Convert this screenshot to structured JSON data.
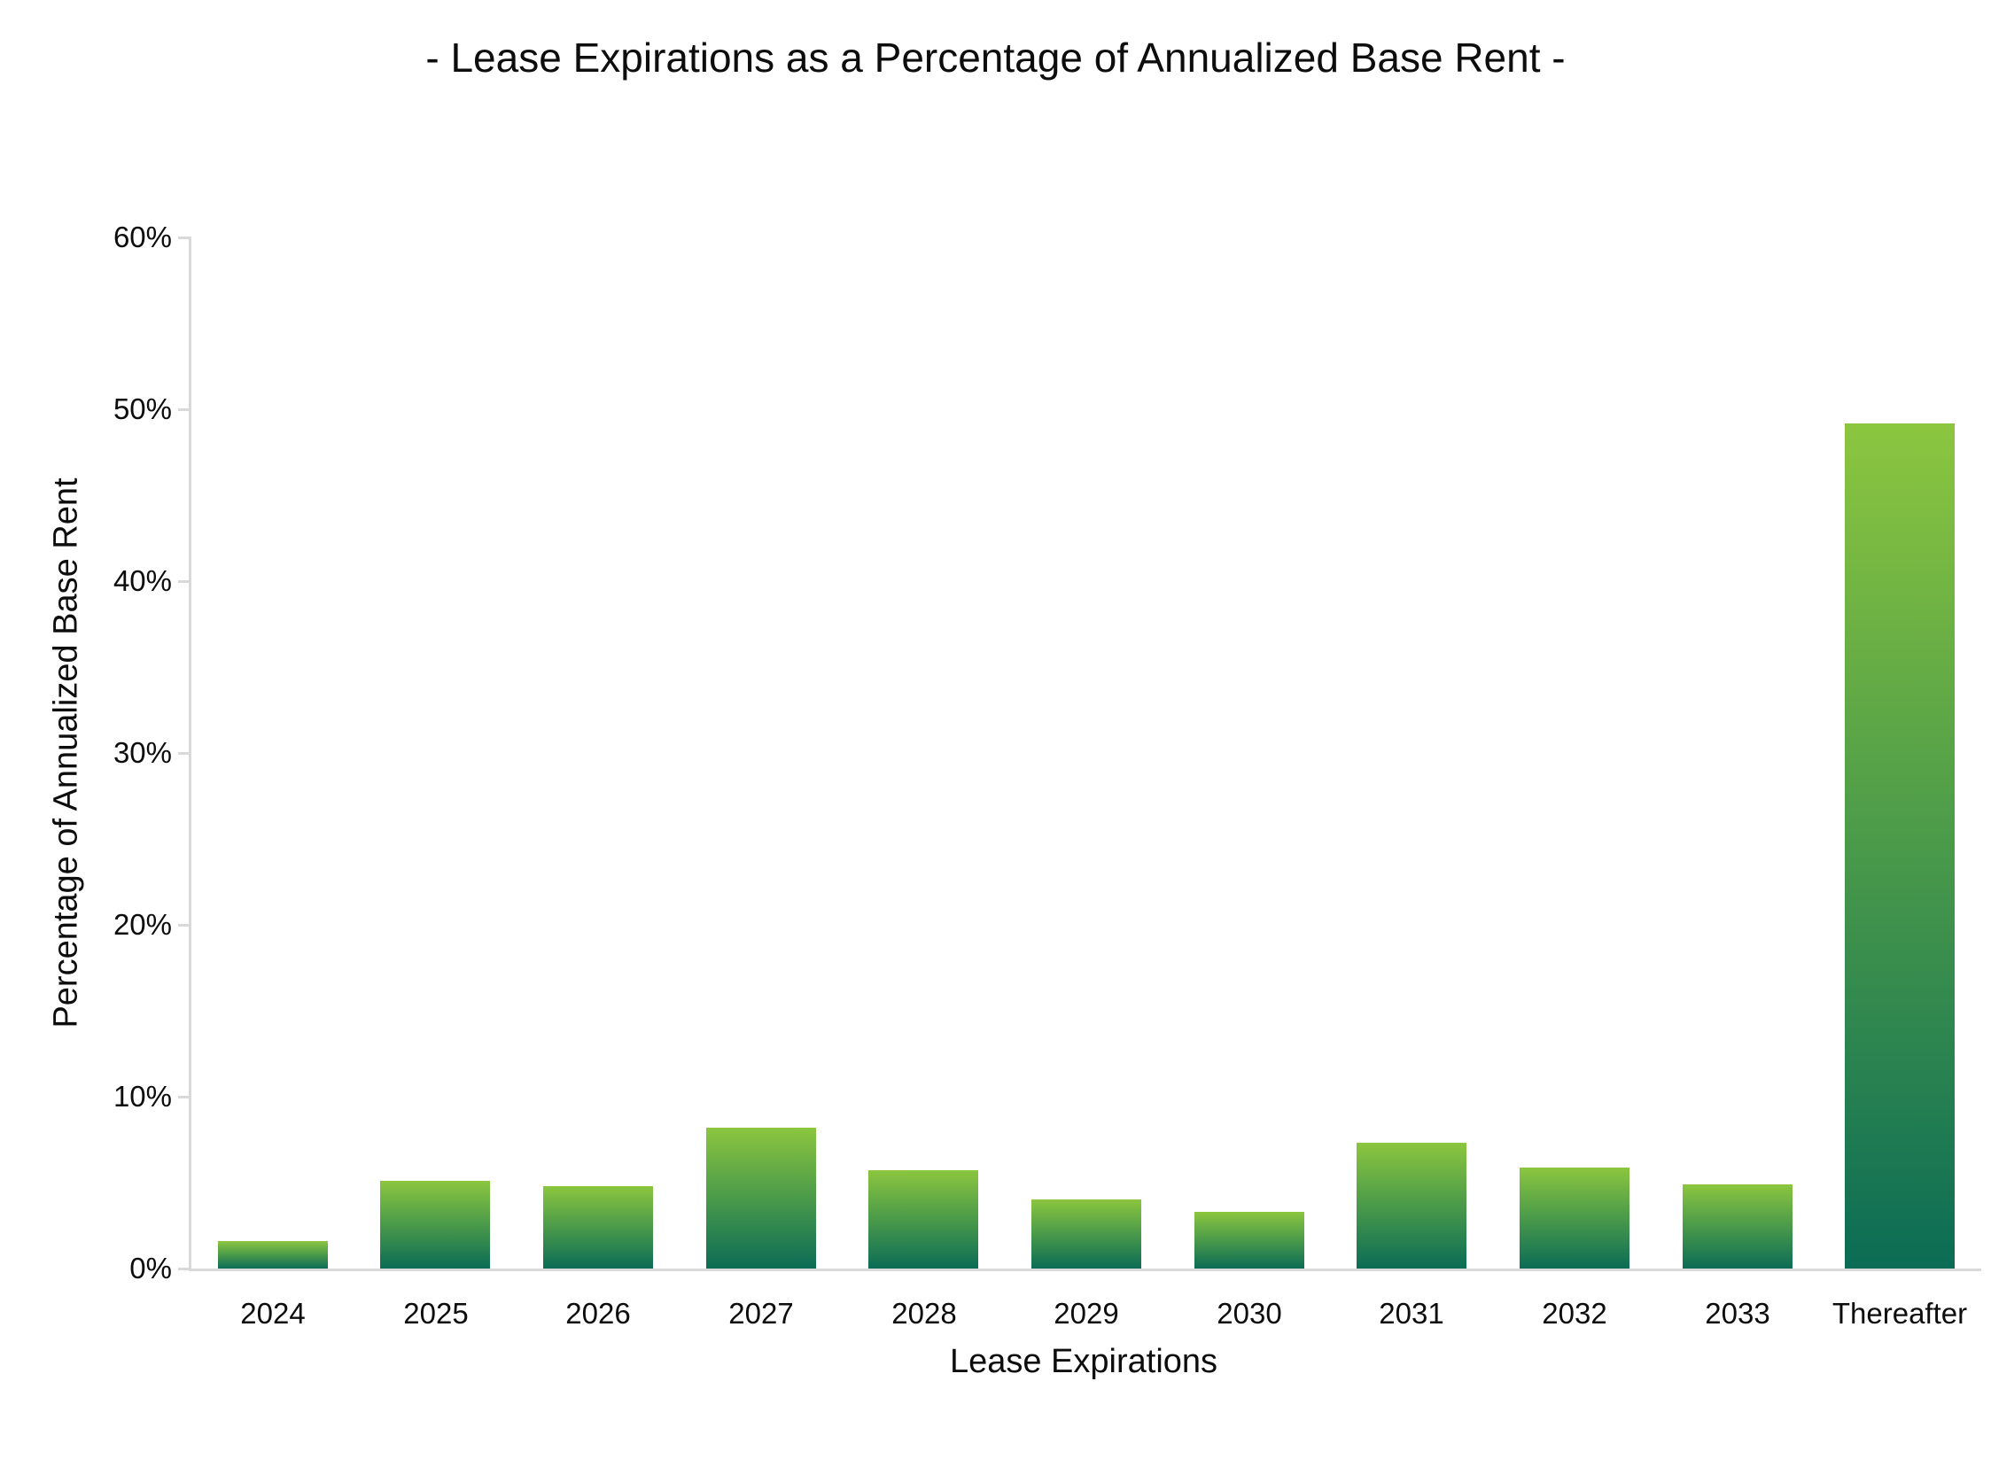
{
  "chart_data": {
    "type": "bar",
    "title": "- Lease Expirations as a Percentage of Annualized Base Rent -",
    "xlabel": "Lease Expirations",
    "ylabel": "Percentage of Annualized Base Rent",
    "categories": [
      "2024",
      "2025",
      "2026",
      "2027",
      "2028",
      "2029",
      "2030",
      "2031",
      "2032",
      "2033",
      "Thereafter"
    ],
    "values": [
      1.6,
      5.1,
      4.8,
      8.2,
      5.7,
      4.0,
      3.3,
      7.3,
      5.9,
      4.9,
      49.2
    ],
    "ylim": [
      0,
      60
    ],
    "ytick_step": 10,
    "yticks": [
      "60%",
      "50%",
      "40%",
      "30%",
      "20%",
      "10%",
      "0%"
    ],
    "grid": "off",
    "legend": "none",
    "colors": {
      "bar_gradient_top": "#8CC63F",
      "bar_gradient_mid": "#4A9A4A",
      "bar_gradient_bottom": "#0B6C55",
      "axis_line": "#D9D9D9",
      "text": "#0D0D0D",
      "background": "#FFFFFF"
    }
  }
}
